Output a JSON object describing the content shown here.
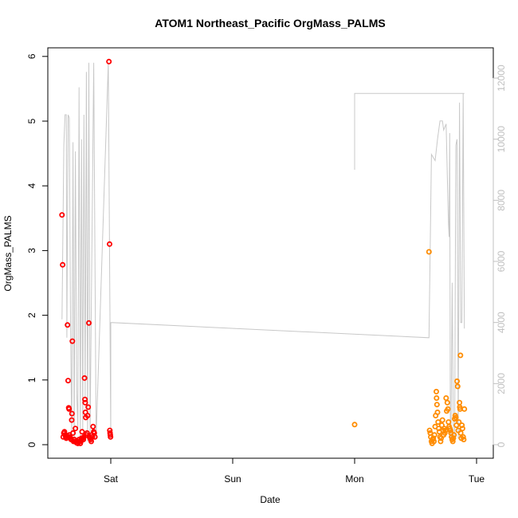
{
  "chart_data": {
    "type": "scatter",
    "title": "ATOM1 Northeast_Pacific OrgMass_PALMS",
    "xlabel": "Date",
    "ylabel": "OrgMass_PALMS",
    "x_ticks": [
      "Sat",
      "Sun",
      "Mon",
      "Tue"
    ],
    "x_range_days": [
      0,
      3
    ],
    "ylim": [
      0,
      6
    ],
    "y_ticks": [
      0,
      1,
      2,
      3,
      4,
      5,
      6
    ],
    "y2_ticks": [
      0,
      2000,
      4000,
      6000,
      8000,
      10000,
      12000
    ],
    "y2lim": [
      0,
      12000
    ],
    "grid": false,
    "colors": {
      "series1": "#ff0000",
      "series2": "#ff8c00",
      "line": "#c8c8c8",
      "frame": "#000000"
    },
    "series": [
      {
        "marker": "open-circle",
        "color": "#ff0000",
        "points": [
          [
            -0.4,
            3.55
          ],
          [
            -0.395,
            2.78
          ],
          [
            -0.39,
            0.12
          ],
          [
            -0.385,
            0.18
          ],
          [
            -0.38,
            0.2
          ],
          [
            -0.375,
            0.15
          ],
          [
            -0.37,
            0.12
          ],
          [
            -0.365,
            0.1
          ],
          [
            -0.36,
            0.14
          ],
          [
            -0.355,
            1.85
          ],
          [
            -0.35,
            0.99
          ],
          [
            -0.345,
            0.57
          ],
          [
            -0.342,
            0.55
          ],
          [
            -0.34,
            0.15
          ],
          [
            -0.335,
            0.12
          ],
          [
            -0.33,
            0.1
          ],
          [
            -0.325,
            0.08
          ],
          [
            -0.32,
            0.38
          ],
          [
            -0.318,
            0.48
          ],
          [
            -0.315,
            1.6
          ],
          [
            -0.31,
            0.18
          ],
          [
            -0.305,
            0.05
          ],
          [
            -0.3,
            0.08
          ],
          [
            -0.295,
            0.05
          ],
          [
            -0.29,
            0.25
          ],
          [
            -0.285,
            0.05
          ],
          [
            -0.28,
            0.03
          ],
          [
            -0.27,
            0.02
          ],
          [
            -0.265,
            0.05
          ],
          [
            -0.26,
            0.08
          ],
          [
            -0.255,
            0.05
          ],
          [
            -0.25,
            0.02
          ],
          [
            -0.245,
            0.05
          ],
          [
            -0.24,
            0.1
          ],
          [
            -0.235,
            0.2
          ],
          [
            -0.23,
            0.1
          ],
          [
            -0.225,
            0.08
          ],
          [
            -0.22,
            0.12
          ],
          [
            -0.215,
            1.03
          ],
          [
            -0.212,
            0.7
          ],
          [
            -0.21,
            0.65
          ],
          [
            -0.208,
            0.5
          ],
          [
            -0.205,
            0.42
          ],
          [
            -0.2,
            0.15
          ],
          [
            -0.195,
            0.18
          ],
          [
            -0.19,
            0.45
          ],
          [
            -0.185,
            0.58
          ],
          [
            -0.18,
            1.88
          ],
          [
            -0.175,
            0.12
          ],
          [
            -0.17,
            0.1
          ],
          [
            -0.165,
            0.08
          ],
          [
            -0.16,
            0.05
          ],
          [
            -0.155,
            0.15
          ],
          [
            -0.15,
            0.12
          ],
          [
            -0.145,
            0.28
          ],
          [
            -0.14,
            0.2
          ],
          [
            -0.135,
            0.18
          ],
          [
            -0.13,
            0.12
          ],
          [
            -0.015,
            5.92
          ],
          [
            -0.01,
            3.1
          ],
          [
            -0.008,
            0.22
          ],
          [
            -0.006,
            0.18
          ],
          [
            -0.004,
            0.15
          ],
          [
            -0.002,
            0.12
          ]
        ]
      },
      {
        "marker": "open-circle",
        "color": "#ff8c00",
        "points": [
          [
            2.0,
            0.31
          ],
          [
            2.61,
            2.98
          ],
          [
            2.615,
            0.22
          ],
          [
            2.62,
            0.18
          ],
          [
            2.625,
            0.12
          ],
          [
            2.63,
            0.05
          ],
          [
            2.635,
            0.02
          ],
          [
            2.64,
            0.08
          ],
          [
            2.645,
            0.1
          ],
          [
            2.65,
            0.05
          ],
          [
            2.655,
            0.15
          ],
          [
            2.66,
            0.28
          ],
          [
            2.665,
            0.45
          ],
          [
            2.67,
            0.82
          ],
          [
            2.672,
            0.72
          ],
          [
            2.675,
            0.62
          ],
          [
            2.68,
            0.5
          ],
          [
            2.685,
            0.35
          ],
          [
            2.69,
            0.25
          ],
          [
            2.695,
            0.2
          ],
          [
            2.7,
            0.12
          ],
          [
            2.705,
            0.05
          ],
          [
            2.71,
            0.1
          ],
          [
            2.715,
            0.3
          ],
          [
            2.72,
            0.38
          ],
          [
            2.725,
            0.22
          ],
          [
            2.73,
            0.15
          ],
          [
            2.735,
            0.25
          ],
          [
            2.74,
            0.18
          ],
          [
            2.745,
            0.22
          ],
          [
            2.75,
            0.72
          ],
          [
            2.755,
            0.52
          ],
          [
            2.76,
            0.65
          ],
          [
            2.765,
            0.55
          ],
          [
            2.77,
            0.35
          ],
          [
            2.775,
            0.28
          ],
          [
            2.78,
            0.25
          ],
          [
            2.785,
            0.22
          ],
          [
            2.79,
            0.18
          ],
          [
            2.795,
            0.12
          ],
          [
            2.8,
            0.08
          ],
          [
            2.805,
            0.05
          ],
          [
            2.81,
            0.1
          ],
          [
            2.815,
            0.15
          ],
          [
            2.82,
            0.4
          ],
          [
            2.825,
            0.45
          ],
          [
            2.83,
            0.42
          ],
          [
            2.835,
            0.3
          ],
          [
            2.84,
            0.98
          ],
          [
            2.845,
            0.9
          ],
          [
            2.85,
            0.22
          ],
          [
            2.855,
            0.35
          ],
          [
            2.86,
            0.65
          ],
          [
            2.862,
            0.58
          ],
          [
            2.865,
            0.55
          ],
          [
            2.868,
            1.38
          ],
          [
            2.87,
            0.18
          ],
          [
            2.875,
            0.1
          ],
          [
            2.88,
            0.3
          ],
          [
            2.885,
            0.25
          ],
          [
            2.89,
            0.12
          ],
          [
            2.895,
            0.08
          ],
          [
            2.9,
            0.55
          ]
        ]
      }
    ],
    "secondary_line": {
      "color": "#c8c8c8",
      "points": [
        [
          -0.4,
          4100
        ],
        [
          -0.385,
          9800
        ],
        [
          -0.375,
          10800
        ],
        [
          -0.365,
          10800
        ],
        [
          -0.36,
          3500
        ],
        [
          -0.35,
          10800
        ],
        [
          -0.34,
          10700
        ],
        [
          -0.33,
          4000
        ],
        [
          -0.32,
          300
        ],
        [
          -0.31,
          9900
        ],
        [
          -0.3,
          200
        ],
        [
          -0.29,
          9600
        ],
        [
          -0.28,
          1800
        ],
        [
          -0.27,
          500
        ],
        [
          -0.26,
          11700
        ],
        [
          -0.25,
          200
        ],
        [
          -0.24,
          10000
        ],
        [
          -0.23,
          500
        ],
        [
          -0.22,
          10800
        ],
        [
          -0.21,
          1500
        ],
        [
          -0.2,
          12200
        ],
        [
          -0.19,
          100
        ],
        [
          -0.18,
          12500
        ],
        [
          -0.17,
          300
        ],
        [
          -0.14,
          12500
        ],
        [
          -0.12,
          200
        ],
        [
          -0.02,
          12500
        ],
        [
          0.0,
          200
        ],
        [
          0.0,
          4000
        ],
        [
          2.61,
          3500
        ],
        [
          2.63,
          9500
        ],
        [
          2.66,
          9300
        ],
        [
          2.68,
          10000
        ],
        [
          2.7,
          10600
        ],
        [
          2.72,
          10600
        ],
        [
          2.73,
          10300
        ],
        [
          2.75,
          10500
        ],
        [
          2.76,
          8800
        ],
        [
          2.77,
          7200
        ],
        [
          2.775,
          6800
        ],
        [
          2.78,
          10200
        ],
        [
          2.785,
          200
        ],
        [
          2.79,
          100
        ],
        [
          2.8,
          5300
        ],
        [
          2.81,
          300
        ],
        [
          2.82,
          200
        ],
        [
          2.83,
          9800
        ],
        [
          2.84,
          10000
        ],
        [
          2.85,
          200
        ],
        [
          2.86,
          11200
        ],
        [
          2.87,
          4000
        ],
        [
          2.88,
          4000
        ],
        [
          2.89,
          11500
        ],
        [
          2.9,
          3800
        ]
      ],
      "segment2": [
        [
          2.0,
          9000
        ],
        [
          2.0,
          11500
        ],
        [
          2.9,
          11500
        ]
      ]
    }
  }
}
